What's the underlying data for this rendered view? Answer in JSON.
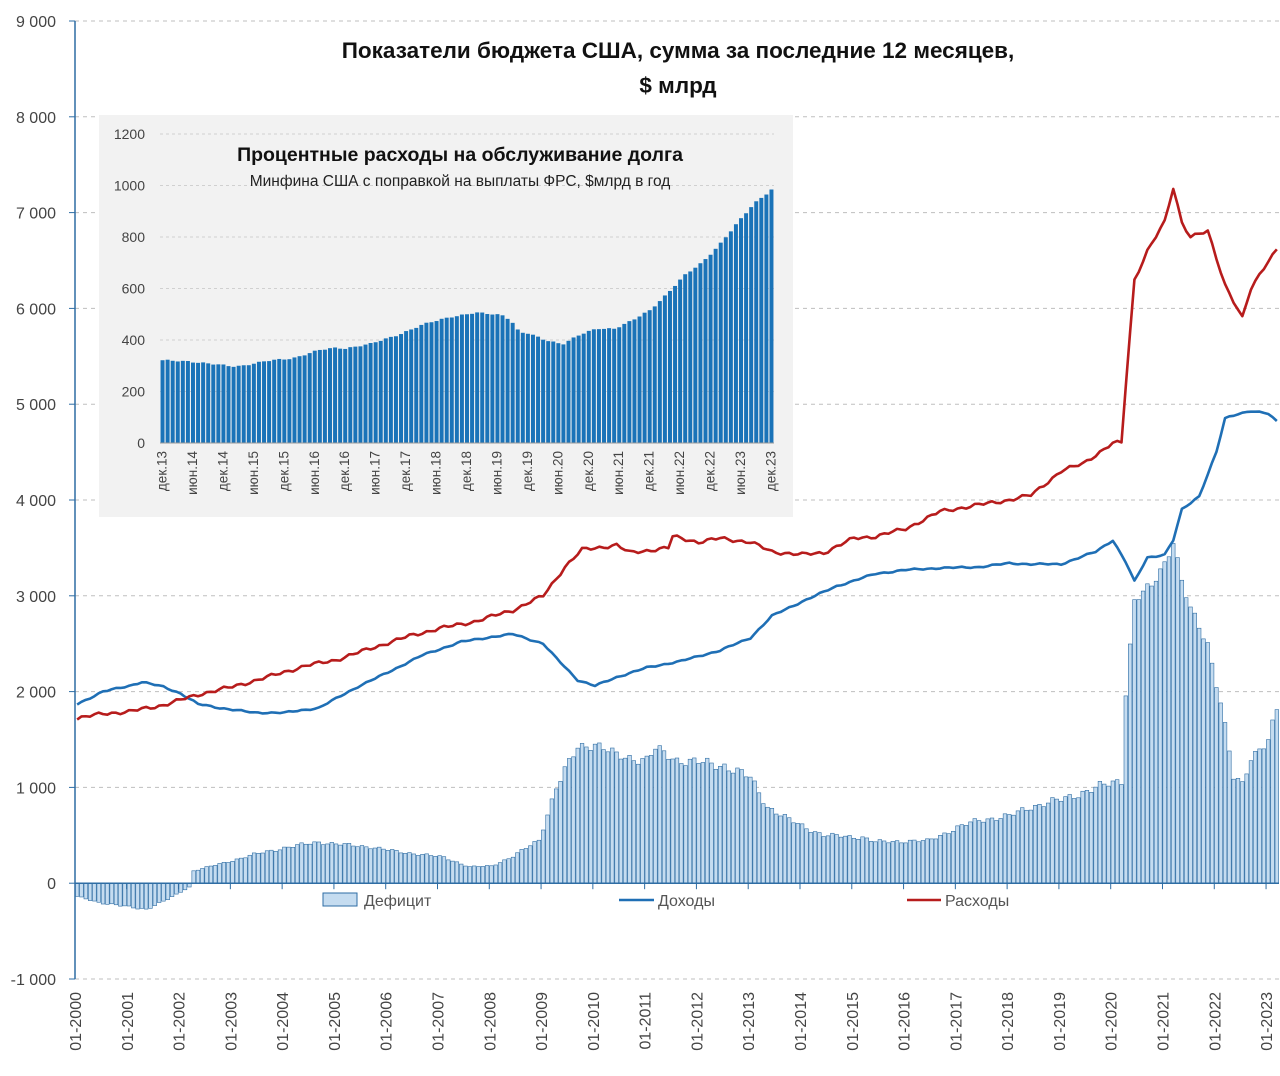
{
  "chart_data": [
    {
      "type": "bar+line",
      "title_line1": "Показатели бюджета США, сумма за последние 12 месяцев,",
      "title_line2": "$ млрд",
      "ylim": [
        -1000,
        9000
      ],
      "y_ticks": [
        "-1 000",
        "0",
        "1 000",
        "2 000",
        "3 000",
        "4 000",
        "5 000",
        "6 000",
        "7 000",
        "8 000",
        "9 000"
      ],
      "y_tick_values": [
        -1000,
        0,
        1000,
        2000,
        3000,
        4000,
        5000,
        6000,
        7000,
        8000,
        9000
      ],
      "x_range": [
        "2000-01",
        "2023-03"
      ],
      "x_ticks": [
        "01-2000",
        "01-2001",
        "01-2002",
        "01-2003",
        "01-2004",
        "01-2005",
        "01-2006",
        "01-2007",
        "01-2008",
        "01-2009",
        "01-2010",
        "01-2011",
        "01-2012",
        "01-2013",
        "01-2014",
        "01-2015",
        "01-2016",
        "01-2017",
        "01-2018",
        "01-2019",
        "01-2020",
        "01-2021",
        "01-2022",
        "01-2023"
      ],
      "legend": [
        {
          "name": "Дефицит",
          "kind": "bar",
          "color": "#c5dcf0",
          "stroke": "#2e6da4"
        },
        {
          "name": "Доходы",
          "kind": "line",
          "color": "#1f6fb5"
        },
        {
          "name": "Расходы",
          "kind": "line",
          "color": "#b71c1c"
        }
      ],
      "deficit_keypoints": [
        [
          "2000-01",
          -140
        ],
        [
          "2000-06",
          -200
        ],
        [
          "2001-01",
          -250
        ],
        [
          "2001-05",
          -270
        ],
        [
          "2001-10",
          -170
        ],
        [
          "2002-03",
          -40
        ],
        [
          "2002-04",
          130
        ],
        [
          "2002-10",
          200
        ],
        [
          "2003-06",
          300
        ],
        [
          "2004-01",
          370
        ],
        [
          "2004-09",
          430
        ],
        [
          "2005-03",
          400
        ],
        [
          "2005-09",
          380
        ],
        [
          "2006-03",
          330
        ],
        [
          "2006-09",
          300
        ],
        [
          "2007-02",
          270
        ],
        [
          "2007-08",
          170
        ],
        [
          "2008-01",
          180
        ],
        [
          "2008-06",
          280
        ],
        [
          "2008-12",
          450
        ],
        [
          "2009-04",
          1000
        ],
        [
          "2009-09",
          1420
        ],
        [
          "2010-01",
          1460
        ],
        [
          "2010-06",
          1330
        ],
        [
          "2011-01",
          1290
        ],
        [
          "2011-03",
          1400
        ],
        [
          "2011-08",
          1290
        ],
        [
          "2012-01",
          1260
        ],
        [
          "2012-07",
          1230
        ],
        [
          "2013-01",
          1100
        ],
        [
          "2013-05",
          800
        ],
        [
          "2013-10",
          660
        ],
        [
          "2014-06",
          500
        ],
        [
          "2015-03",
          480
        ],
        [
          "2015-06",
          430
        ],
        [
          "2016-01",
          440
        ],
        [
          "2016-06",
          440
        ],
        [
          "2017-01",
          580
        ],
        [
          "2017-06",
          660
        ],
        [
          "2018-01",
          700
        ],
        [
          "2018-06",
          800
        ],
        [
          "2019-01",
          870
        ],
        [
          "2019-06",
          950
        ],
        [
          "2020-01",
          1050
        ],
        [
          "2020-03",
          1080
        ],
        [
          "2020-04",
          2000
        ],
        [
          "2020-06",
          2950
        ],
        [
          "2020-10",
          3100
        ],
        [
          "2021-01",
          3350
        ],
        [
          "2021-03",
          3580
        ],
        [
          "2021-05",
          3150
        ],
        [
          "2021-07",
          2850
        ],
        [
          "2021-11",
          2500
        ],
        [
          "2022-02",
          1900
        ],
        [
          "2022-05",
          1100
        ],
        [
          "2022-07",
          1020
        ],
        [
          "2022-09",
          1320
        ],
        [
          "2023-01",
          1500
        ],
        [
          "2023-03",
          1800
        ]
      ],
      "revenue_keypoints": [
        [
          "2000-01",
          1870
        ],
        [
          "2000-07",
          2000
        ],
        [
          "2001-01",
          2060
        ],
        [
          "2001-04",
          2100
        ],
        [
          "2001-09",
          2050
        ],
        [
          "2002-01",
          1980
        ],
        [
          "2002-05",
          1870
        ],
        [
          "2002-10",
          1830
        ],
        [
          "2003-06",
          1780
        ],
        [
          "2004-01",
          1780
        ],
        [
          "2004-09",
          1830
        ],
        [
          "2005-06",
          2050
        ],
        [
          "2006-01",
          2200
        ],
        [
          "2006-09",
          2380
        ],
        [
          "2007-06",
          2520
        ],
        [
          "2008-01",
          2570
        ],
        [
          "2008-06",
          2600
        ],
        [
          "2009-01",
          2500
        ],
        [
          "2009-04",
          2350
        ],
        [
          "2009-09",
          2120
        ],
        [
          "2010-01",
          2060
        ],
        [
          "2010-06",
          2150
        ],
        [
          "2011-01",
          2250
        ],
        [
          "2011-09",
          2320
        ],
        [
          "2012-06",
          2430
        ],
        [
          "2013-01",
          2560
        ],
        [
          "2013-06",
          2790
        ],
        [
          "2014-01",
          2940
        ],
        [
          "2014-09",
          3100
        ],
        [
          "2015-06",
          3230
        ],
        [
          "2016-01",
          3270
        ],
        [
          "2016-09",
          3290
        ],
        [
          "2017-06",
          3300
        ],
        [
          "2018-01",
          3340
        ],
        [
          "2018-06",
          3330
        ],
        [
          "2019-01",
          3330
        ],
        [
          "2019-09",
          3460
        ],
        [
          "2020-01",
          3580
        ],
        [
          "2020-04",
          3350
        ],
        [
          "2020-06",
          3150
        ],
        [
          "2020-09",
          3400
        ],
        [
          "2021-01",
          3430
        ],
        [
          "2021-03",
          3580
        ],
        [
          "2021-05",
          3900
        ],
        [
          "2021-09",
          4040
        ],
        [
          "2022-01",
          4500
        ],
        [
          "2022-03",
          4850
        ],
        [
          "2022-06",
          4900
        ],
        [
          "2022-09",
          4930
        ],
        [
          "2023-01",
          4900
        ],
        [
          "2023-03",
          4820
        ]
      ],
      "spending_keypoints": [
        [
          "2000-01",
          1720
        ],
        [
          "2000-07",
          1770
        ],
        [
          "2001-01",
          1790
        ],
        [
          "2001-09",
          1860
        ],
        [
          "2002-06",
          1980
        ],
        [
          "2003-01",
          2050
        ],
        [
          "2003-09",
          2150
        ],
        [
          "2004-06",
          2270
        ],
        [
          "2005-01",
          2330
        ],
        [
          "2005-09",
          2450
        ],
        [
          "2006-06",
          2580
        ],
        [
          "2007-01",
          2660
        ],
        [
          "2007-09",
          2730
        ],
        [
          "2008-06",
          2850
        ],
        [
          "2009-01",
          3000
        ],
        [
          "2009-06",
          3300
        ],
        [
          "2009-10",
          3480
        ],
        [
          "2010-06",
          3530
        ],
        [
          "2010-09",
          3450
        ],
        [
          "2011-06",
          3500
        ],
        [
          "2011-07",
          3620
        ],
        [
          "2012-01",
          3560
        ],
        [
          "2012-06",
          3600
        ],
        [
          "2013-01",
          3560
        ],
        [
          "2013-06",
          3460
        ],
        [
          "2014-01",
          3430
        ],
        [
          "2014-06",
          3450
        ],
        [
          "2015-01",
          3600
        ],
        [
          "2015-06",
          3620
        ],
        [
          "2016-01",
          3700
        ],
        [
          "2016-09",
          3880
        ],
        [
          "2017-06",
          3950
        ],
        [
          "2018-01",
          4000
        ],
        [
          "2018-06",
          4050
        ],
        [
          "2019-01",
          4300
        ],
        [
          "2019-06",
          4380
        ],
        [
          "2020-01",
          4590
        ],
        [
          "2020-03",
          4600
        ],
        [
          "2020-04",
          5200
        ],
        [
          "2020-06",
          6300
        ],
        [
          "2020-09",
          6600
        ],
        [
          "2021-01",
          6900
        ],
        [
          "2021-03",
          7260
        ],
        [
          "2021-05",
          6900
        ],
        [
          "2021-07",
          6750
        ],
        [
          "2021-11",
          6800
        ],
        [
          "2022-03",
          6250
        ],
        [
          "2022-07",
          5900
        ],
        [
          "2022-09",
          6200
        ],
        [
          "2023-01",
          6500
        ],
        [
          "2023-03",
          6620
        ]
      ]
    },
    {
      "type": "bar",
      "title": "Процентные расходы на обслуживание долга",
      "subtitle": "Минфина США с поправкой на выплаты ФРС, $млрд в год",
      "ylim": [
        0,
        1200
      ],
      "y_ticks": [
        "0",
        "200",
        "400",
        "600",
        "800",
        "1000",
        "1200"
      ],
      "y_tick_values": [
        0,
        200,
        400,
        600,
        800,
        1000,
        1200
      ],
      "x_ticks": [
        "дек.13",
        "июн.14",
        "дек.14",
        "июн.15",
        "дек.15",
        "июн.16",
        "дек.16",
        "июн.17",
        "дек.17",
        "июн.18",
        "дек.18",
        "июн.19",
        "дек.19",
        "июн.20",
        "дек.20",
        "июн.21",
        "дек.21",
        "июн.22",
        "дек.22",
        "июн.23",
        "дек.23"
      ],
      "bar_color": "#1a73b8",
      "interest_keypoints": [
        [
          0,
          320
        ],
        [
          6,
          318
        ],
        [
          12,
          305
        ],
        [
          16,
          298
        ],
        [
          18,
          300
        ],
        [
          24,
          318
        ],
        [
          30,
          330
        ],
        [
          36,
          360
        ],
        [
          40,
          370
        ],
        [
          42,
          368
        ],
        [
          48,
          385
        ],
        [
          54,
          420
        ],
        [
          60,
          460
        ],
        [
          66,
          490
        ],
        [
          72,
          505
        ],
        [
          78,
          498
        ],
        [
          80,
          480
        ],
        [
          82,
          430
        ],
        [
          84,
          425
        ],
        [
          88,
          400
        ],
        [
          92,
          385
        ],
        [
          96,
          420
        ],
        [
          100,
          445
        ],
        [
          104,
          445
        ],
        [
          108,
          475
        ],
        [
          112,
          515
        ],
        [
          116,
          580
        ],
        [
          120,
          650
        ],
        [
          124,
          700
        ],
        [
          128,
          770
        ],
        [
          132,
          850
        ],
        [
          136,
          930
        ],
        [
          140,
          985
        ]
      ]
    }
  ]
}
